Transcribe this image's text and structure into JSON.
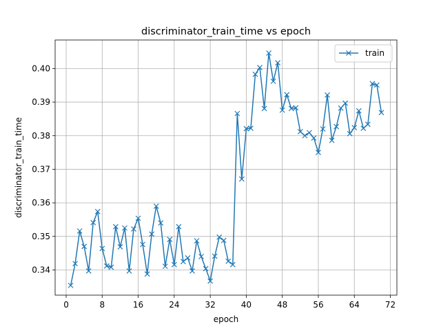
{
  "chart_data": {
    "type": "line",
    "title": "discriminator_train_time vs epoch",
    "xlabel": "epoch",
    "ylabel": "discriminator_train_time",
    "xlim": [
      -2.45,
      73.45
    ],
    "ylim": [
      0.3325,
      0.4085
    ],
    "xticks": [
      0,
      8,
      16,
      24,
      32,
      40,
      48,
      56,
      64,
      72
    ],
    "yticks": [
      0.34,
      0.35,
      0.36,
      0.37,
      0.38,
      0.39,
      0.4
    ],
    "ytick_labels": [
      "0.34",
      "0.35",
      "0.36",
      "0.37",
      "0.38",
      "0.39",
      "0.40"
    ],
    "grid": true,
    "legend_position": "top-right",
    "colors": {
      "series": "#1f77b4",
      "grid": "#b0b0b0",
      "axis": "#000000"
    },
    "series": [
      {
        "name": "train",
        "marker": "x",
        "x": [
          1,
          2,
          3,
          4,
          5,
          6,
          7,
          8,
          9,
          10,
          11,
          12,
          13,
          14,
          15,
          16,
          17,
          18,
          19,
          20,
          21,
          22,
          23,
          24,
          25,
          26,
          27,
          28,
          29,
          30,
          31,
          32,
          33,
          34,
          35,
          36,
          37,
          38,
          39,
          40,
          41,
          42,
          43,
          44,
          45,
          46,
          47,
          48,
          49,
          50,
          51,
          52,
          53,
          54,
          55,
          56,
          57,
          58,
          59,
          60,
          61,
          62,
          63,
          64,
          65,
          66,
          67,
          68,
          69,
          70
        ],
        "y": [
          0.3354,
          0.3419,
          0.3516,
          0.347,
          0.3397,
          0.3541,
          0.3574,
          0.3464,
          0.3412,
          0.3408,
          0.3529,
          0.3469,
          0.3525,
          0.3397,
          0.3522,
          0.3554,
          0.3476,
          0.3388,
          0.3507,
          0.359,
          0.354,
          0.3411,
          0.3491,
          0.3416,
          0.3529,
          0.3425,
          0.3436,
          0.3397,
          0.3487,
          0.344,
          0.3404,
          0.3367,
          0.3441,
          0.3498,
          0.3488,
          0.3426,
          0.3416,
          0.3866,
          0.3671,
          0.3821,
          0.3822,
          0.3983,
          0.4003,
          0.3881,
          0.4046,
          0.3962,
          0.4017,
          0.3876,
          0.3922,
          0.3881,
          0.3883,
          0.3812,
          0.38,
          0.3809,
          0.3793,
          0.375,
          0.382,
          0.3921,
          0.3786,
          0.3827,
          0.3882,
          0.3897,
          0.3806,
          0.3824,
          0.3874,
          0.3822,
          0.3834,
          0.3955,
          0.3951,
          0.3869
        ]
      }
    ]
  }
}
